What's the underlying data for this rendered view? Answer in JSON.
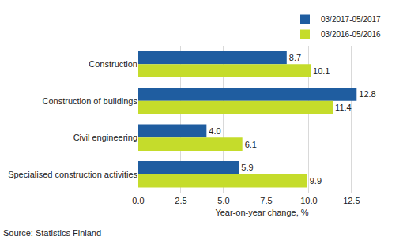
{
  "chart_data": {
    "type": "bar",
    "orientation": "horizontal",
    "categories": [
      "Construction",
      "Construction of buildings",
      "Civil engineering",
      "Specialised construction activities"
    ],
    "series": [
      {
        "name": "03/2017-05/2017",
        "color": "#1f5da0",
        "values": [
          8.7,
          12.8,
          4.0,
          5.9
        ],
        "value_labels": [
          "8.7",
          "12.8",
          "4.0",
          "5.9"
        ]
      },
      {
        "name": "03/2016-05/2016",
        "color": "#c5dc2b",
        "values": [
          10.1,
          11.4,
          6.1,
          9.9
        ],
        "value_labels": [
          "10.1",
          "11.4",
          "6.1",
          "9.9"
        ]
      }
    ],
    "x_label": "Year-on-year change, %",
    "xlim": [
      0,
      14.5
    ],
    "xticks": [
      {
        "value": 0,
        "label": "0.0"
      },
      2.5,
      {
        "value": 5,
        "label": "5.0"
      },
      7.5,
      {
        "value": 10,
        "label": "10.0"
      },
      12.5
    ],
    "grid": true,
    "data_labels": true,
    "legend": "top right",
    "annotations": [
      "Source: Statistics Finland"
    ]
  }
}
